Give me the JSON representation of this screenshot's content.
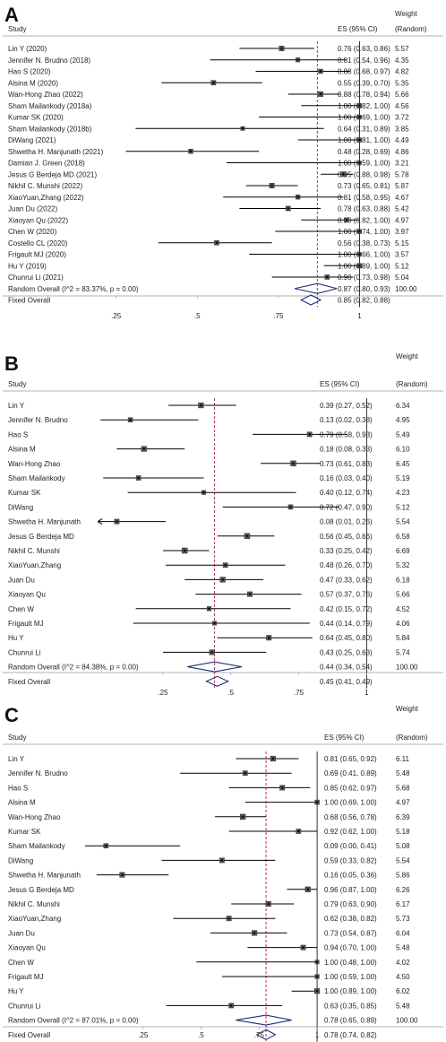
{
  "chart_data": [
    {
      "type": "forest",
      "panel_letter": "A",
      "headers": {
        "study": "Study",
        "es": "ES (95% CI)",
        "weight": [
          "Weight",
          "(Random)"
        ]
      },
      "xticks": [
        0.25,
        0.5,
        0.75,
        1
      ],
      "xtick_labels": [
        ".25",
        ".5",
        ".75",
        "1"
      ],
      "xlim": [
        0.0,
        1.12
      ],
      "reference_line": 0.87,
      "studies": [
        {
          "label": "Lin Y (2020)",
          "es": 0.76,
          "lo": 0.63,
          "hi": 0.86,
          "ci_text": "0.76 (0.63, 0.86)",
          "weight": "5.57"
        },
        {
          "label": "Jennifer N. Brudno (2018)",
          "es": 0.81,
          "lo": 0.54,
          "hi": 0.96,
          "ci_text": "0.81 (0.54, 0.96)",
          "weight": "4.35"
        },
        {
          "label": "Hao S (2020)",
          "es": 0.88,
          "lo": 0.68,
          "hi": 0.97,
          "ci_text": "0.88 (0.68, 0.97)",
          "weight": "4.82"
        },
        {
          "label": "Alsina M (2020)",
          "es": 0.55,
          "lo": 0.39,
          "hi": 0.7,
          "ci_text": "0.55 (0.39, 0.70)",
          "weight": "5.35"
        },
        {
          "label": "Wan-Hong Zhao (2022)",
          "es": 0.88,
          "lo": 0.78,
          "hi": 0.94,
          "ci_text": "0.88 (0.78, 0.94)",
          "weight": "5.66"
        },
        {
          "label": "Sham Mailankody (2018a)",
          "es": 1.0,
          "lo": 0.82,
          "hi": 1.0,
          "ci_text": "1.00 (0.82, 1.00)",
          "weight": "4.56"
        },
        {
          "label": "Kumar SK (2020)",
          "es": 1.0,
          "lo": 0.69,
          "hi": 1.0,
          "ci_text": "1.00 (0.69, 1.00)",
          "weight": "3.72"
        },
        {
          "label": "Sham Mailankody (2018b)",
          "es": 0.64,
          "lo": 0.31,
          "hi": 0.89,
          "ci_text": "0.64 (0.31, 0.89)",
          "weight": "3.85"
        },
        {
          "label": "DiWang (2021)",
          "es": 1.0,
          "lo": 0.81,
          "hi": 1.0,
          "ci_text": "1.00 (0.81, 1.00)",
          "weight": "4.49"
        },
        {
          "label": "Shwetha H. Manjunath (2021)",
          "es": 0.48,
          "lo": 0.28,
          "hi": 0.69,
          "ci_text": "0.48 (0.28, 0.69)",
          "weight": "4.86"
        },
        {
          "label": "Damian J. Green (2018)",
          "es": 1.0,
          "lo": 0.59,
          "hi": 1.0,
          "ci_text": "1.00 (0.59, 1.00)",
          "weight": "3.21"
        },
        {
          "label": "Jesus G Berdeja MD (2021)",
          "es": 0.95,
          "lo": 0.88,
          "hi": 0.98,
          "ci_text": "0.95 (0.88, 0.98)",
          "weight": "5.78"
        },
        {
          "label": "Nikhil C. Munshi (2022)",
          "es": 0.73,
          "lo": 0.65,
          "hi": 0.81,
          "ci_text": "0.73 (0.65, 0.81)",
          "weight": "5.87"
        },
        {
          "label": "XiaoYuan,Zhang (2022)",
          "es": 0.81,
          "lo": 0.58,
          "hi": 0.95,
          "ci_text": "0.81 (0.58, 0.95)",
          "weight": "4.67"
        },
        {
          "label": "Juan Du (2022)",
          "es": 0.78,
          "lo": 0.63,
          "hi": 0.88,
          "ci_text": "0.78 (0.63, 0.88)",
          "weight": "5.42"
        },
        {
          "label": "Xiaoyan Qu (2022)",
          "es": 0.96,
          "lo": 0.82,
          "hi": 1.0,
          "ci_text": "0.96 (0.82, 1.00)",
          "weight": "4.97"
        },
        {
          "label": "Chen W (2020)",
          "es": 1.0,
          "lo": 0.74,
          "hi": 1.0,
          "ci_text": "1.00 (0.74, 1.00)",
          "weight": "3.97"
        },
        {
          "label": "Costello CL (2020)",
          "es": 0.56,
          "lo": 0.38,
          "hi": 0.73,
          "ci_text": "0.56 (0.38, 0.73)",
          "weight": "5.15"
        },
        {
          "label": "Frigault MJ (2020)",
          "es": 1.0,
          "lo": 0.66,
          "hi": 1.0,
          "ci_text": "1.00 (0.66, 1.00)",
          "weight": "3.57"
        },
        {
          "label": "Hu Y (2019)",
          "es": 1.0,
          "lo": 0.89,
          "hi": 1.0,
          "ci_text": "1.00 (0.89, 1.00)",
          "weight": "5.12"
        },
        {
          "label": "Chunrui Li (2021)",
          "es": 0.9,
          "lo": 0.73,
          "hi": 0.98,
          "ci_text": "0.90 (0.73, 0.98)",
          "weight": "5.04"
        }
      ],
      "overall": [
        {
          "label": "Random Overall  (I^2 = 83.37%, p = 0.00)",
          "es": 0.87,
          "lo": 0.8,
          "hi": 0.93,
          "ci_text": "0.87 (0.80, 0.93)",
          "weight": "100.00",
          "kind": "random"
        },
        {
          "label": "Fixed Overall",
          "es": 0.85,
          "lo": 0.82,
          "hi": 0.88,
          "ci_text": "0.85 (0.82, 0.88)",
          "weight": "",
          "kind": "fixed"
        }
      ]
    },
    {
      "type": "forest",
      "panel_letter": "B",
      "headers": {
        "study": "Study",
        "es": "ES (95% CI)",
        "weight": [
          "Weight",
          "(Random)"
        ]
      },
      "xticks": [
        0.25,
        0.5,
        0.75,
        1
      ],
      "xtick_labels": [
        ".25",
        ".5",
        ".75",
        "1"
      ],
      "xlim": [
        -0.05,
        1.2
      ],
      "reference_line": 0.44,
      "studies": [
        {
          "label": "Lin Y",
          "es": 0.39,
          "lo": 0.27,
          "hi": 0.52,
          "ci_text": "0.39 (0.27, 0.52)",
          "weight": "6.34"
        },
        {
          "label": "Jennifer N. Brudno",
          "es": 0.13,
          "lo": 0.02,
          "hi": 0.38,
          "ci_text": "0.13 (0.02, 0.38)",
          "weight": "4.95"
        },
        {
          "label": "Hao S",
          "es": 0.79,
          "lo": 0.58,
          "hi": 0.93,
          "ci_text": "0.79 (0.58, 0.93)",
          "weight": "5.49"
        },
        {
          "label": "Alsina M",
          "es": 0.18,
          "lo": 0.08,
          "hi": 0.33,
          "ci_text": "0.18 (0.08, 0.33)",
          "weight": "6.10"
        },
        {
          "label": "Wan-Hong Zhao",
          "es": 0.73,
          "lo": 0.61,
          "hi": 0.83,
          "ci_text": "0.73 (0.61, 0.83)",
          "weight": "6.45"
        },
        {
          "label": "Sham Mailankody",
          "es": 0.16,
          "lo": 0.03,
          "hi": 0.4,
          "ci_text": "0.16 (0.03, 0.40)",
          "weight": "5.19"
        },
        {
          "label": "Kumar SK",
          "es": 0.4,
          "lo": 0.12,
          "hi": 0.74,
          "ci_text": "0.40 (0.12, 0.74)",
          "weight": "4.23"
        },
        {
          "label": "DiWang",
          "es": 0.72,
          "lo": 0.47,
          "hi": 0.9,
          "ci_text": "0.72 (0.47, 0.90)",
          "weight": "5.12"
        },
        {
          "label": "Shwetha H. Manjunath",
          "es": 0.08,
          "lo": 0.01,
          "hi": 0.26,
          "ci_text": "0.08 (0.01, 0.26)",
          "weight": "5.54",
          "arrow_left": true
        },
        {
          "label": "Jesus G Berdeja MD",
          "es": 0.56,
          "lo": 0.45,
          "hi": 0.66,
          "ci_text": "0.56 (0.45, 0.66)",
          "weight": "6.58"
        },
        {
          "label": "Nikhil C. Munshi",
          "es": 0.33,
          "lo": 0.25,
          "hi": 0.42,
          "ci_text": "0.33 (0.25, 0.42)",
          "weight": "6.69"
        },
        {
          "label": "XiaoYuan,Zhang",
          "es": 0.48,
          "lo": 0.26,
          "hi": 0.7,
          "ci_text": "0.48 (0.26, 0.70)",
          "weight": "5.32"
        },
        {
          "label": "Juan Du",
          "es": 0.47,
          "lo": 0.33,
          "hi": 0.62,
          "ci_text": "0.47 (0.33, 0.62)",
          "weight": "6.18"
        },
        {
          "label": "Xiaoyan Qu",
          "es": 0.57,
          "lo": 0.37,
          "hi": 0.76,
          "ci_text": "0.57 (0.37, 0.76)",
          "weight": "5.66"
        },
        {
          "label": "Chen W",
          "es": 0.42,
          "lo": 0.15,
          "hi": 0.72,
          "ci_text": "0.42 (0.15, 0.72)",
          "weight": "4.52"
        },
        {
          "label": "Frigault MJ",
          "es": 0.44,
          "lo": 0.14,
          "hi": 0.79,
          "ci_text": "0.44 (0.14, 0.79)",
          "weight": "4.06"
        },
        {
          "label": "Hu Y",
          "es": 0.64,
          "lo": 0.45,
          "hi": 0.8,
          "ci_text": "0.64 (0.45, 0.80)",
          "weight": "5.84"
        },
        {
          "label": "Chunrui Li",
          "es": 0.43,
          "lo": 0.25,
          "hi": 0.63,
          "ci_text": "0.43 (0.25, 0.63)",
          "weight": "5.74"
        }
      ],
      "overall": [
        {
          "label": "Random Overall  (I^2 = 84.38%, p = 0.00)",
          "es": 0.44,
          "lo": 0.34,
          "hi": 0.54,
          "ci_text": "0.44 (0.34, 0.54)",
          "weight": "100.00",
          "kind": "random"
        },
        {
          "label": "Fixed Overall",
          "es": 0.45,
          "lo": 0.41,
          "hi": 0.49,
          "ci_text": "0.45 (0.41, 0.49)",
          "weight": "",
          "kind": "fixed"
        }
      ]
    },
    {
      "type": "forest",
      "panel_letter": "C",
      "headers": {
        "study": "Study",
        "es": "ES (95% CI)",
        "weight": [
          "Weight",
          "(Random)"
        ]
      },
      "xticks": [
        0.25,
        0.5,
        0.75,
        1
      ],
      "xtick_labels": [
        ".25",
        ".5",
        ".75",
        "1"
      ],
      "xlim": [
        -0.05,
        1.1
      ],
      "reference_line": 0.78,
      "studies": [
        {
          "label": "Lin Y",
          "es": 0.81,
          "lo": 0.65,
          "hi": 0.92,
          "ci_text": "0.81 (0.65, 0.92)",
          "weight": "6.11"
        },
        {
          "label": "Jennifer N. Brudno",
          "es": 0.69,
          "lo": 0.41,
          "hi": 0.89,
          "ci_text": "0.69 (0.41, 0.89)",
          "weight": "5.48"
        },
        {
          "label": "Hao S",
          "es": 0.85,
          "lo": 0.62,
          "hi": 0.97,
          "ci_text": "0.85 (0.62, 0.97)",
          "weight": "5.68"
        },
        {
          "label": "Alsina M",
          "es": 1.0,
          "lo": 0.69,
          "hi": 1.0,
          "ci_text": "1.00 (0.69, 1.00)",
          "weight": "4.97"
        },
        {
          "label": "Wan-Hong Zhao",
          "es": 0.68,
          "lo": 0.56,
          "hi": 0.78,
          "ci_text": "0.68 (0.56, 0.78)",
          "weight": "6.39"
        },
        {
          "label": "Kumar SK",
          "es": 0.92,
          "lo": 0.62,
          "hi": 1.0,
          "ci_text": "0.92 (0.62, 1.00)",
          "weight": "5.18"
        },
        {
          "label": "Sham Mailankody",
          "es": 0.09,
          "lo": 0.0,
          "hi": 0.41,
          "ci_text": "0.09 (0.00, 0.41)",
          "weight": "5.08"
        },
        {
          "label": "DiWang",
          "es": 0.59,
          "lo": 0.33,
          "hi": 0.82,
          "ci_text": "0.59 (0.33, 0.82)",
          "weight": "5.54"
        },
        {
          "label": "Shwetha H. Manjunath",
          "es": 0.16,
          "lo": 0.05,
          "hi": 0.36,
          "ci_text": "0.16 (0.05, 0.36)",
          "weight": "5.86"
        },
        {
          "label": "Jesus G Berdeja MD",
          "es": 0.96,
          "lo": 0.87,
          "hi": 1.0,
          "ci_text": "0.96 (0.87, 1.00)",
          "weight": "6.26"
        },
        {
          "label": "Nikhil C. Munshi",
          "es": 0.79,
          "lo": 0.63,
          "hi": 0.9,
          "ci_text": "0.79 (0.63, 0.90)",
          "weight": "6.17"
        },
        {
          "label": "XiaoYuan,Zhang",
          "es": 0.62,
          "lo": 0.38,
          "hi": 0.82,
          "ci_text": "0.62 (0.38, 0.82)",
          "weight": "5.73"
        },
        {
          "label": "Juan Du",
          "es": 0.73,
          "lo": 0.54,
          "hi": 0.87,
          "ci_text": "0.73 (0.54, 0.87)",
          "weight": "6.04"
        },
        {
          "label": "Xiaoyan Qu",
          "es": 0.94,
          "lo": 0.7,
          "hi": 1.0,
          "ci_text": "0.94 (0.70, 1.00)",
          "weight": "5.48"
        },
        {
          "label": "Chen W",
          "es": 1.0,
          "lo": 0.48,
          "hi": 1.0,
          "ci_text": "1.00 (0.48, 1.00)",
          "weight": "4.02"
        },
        {
          "label": "Frigault MJ",
          "es": 1.0,
          "lo": 0.59,
          "hi": 1.0,
          "ci_text": "1.00 (0.59, 1.00)",
          "weight": "4.50"
        },
        {
          "label": "Hu Y",
          "es": 1.0,
          "lo": 0.89,
          "hi": 1.0,
          "ci_text": "1.00 (0.89, 1.00)",
          "weight": "6.02"
        },
        {
          "label": "Chunrui Li",
          "es": 0.63,
          "lo": 0.35,
          "hi": 0.85,
          "ci_text": "0.63 (0.35, 0.85)",
          "weight": "5.48"
        }
      ],
      "overall": [
        {
          "label": "Random Overall  (I^2 = 87.01%, p = 0.00)",
          "es": 0.78,
          "lo": 0.65,
          "hi": 0.89,
          "ci_text": "0.78 (0.65, 0.89)",
          "weight": "100.00",
          "kind": "random"
        },
        {
          "label": "Fixed Overall",
          "es": 0.78,
          "lo": 0.74,
          "hi": 0.82,
          "ci_text": "0.78 (0.74, 0.82)",
          "weight": "",
          "kind": "fixed"
        }
      ]
    }
  ],
  "colors": {
    "text": "#222222",
    "line": "#000000",
    "marker": "#555555",
    "diamond": "#1f2e7a",
    "reference_line": "#b03a48",
    "rule": "#999999"
  }
}
